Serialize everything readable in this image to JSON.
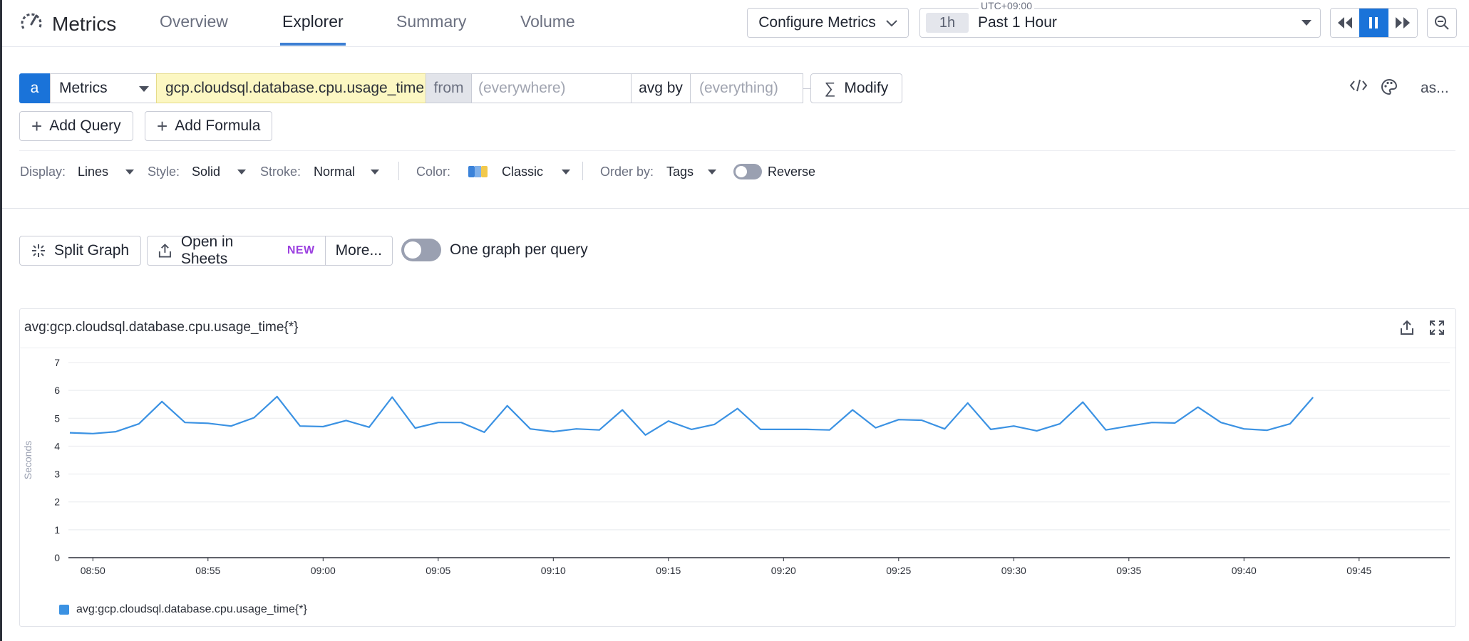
{
  "nav": {
    "title": "Metrics",
    "tabs": [
      "Overview",
      "Explorer",
      "Summary",
      "Volume"
    ],
    "active_tab": "Explorer",
    "configure_label": "Configure Metrics",
    "timezone": "UTC+09:00",
    "time_shortcut": "1h",
    "time_label": "Past 1 Hour"
  },
  "query": {
    "letter": "a",
    "source": "Metrics",
    "metric": "gcp.cloudsql.database.cpu.usage_time",
    "from_label": "from",
    "from_placeholder": "(everywhere)",
    "agg_label": "avg by",
    "agg_placeholder": "(everything)",
    "modify_label": "Modify",
    "as_label": "as...",
    "add_query_label": "Add Query",
    "add_formula_label": "Add Formula"
  },
  "display": {
    "display_label": "Display:",
    "display_value": "Lines",
    "style_label": "Style:",
    "style_value": "Solid",
    "stroke_label": "Stroke:",
    "stroke_value": "Normal",
    "color_label": "Color:",
    "color_value": "Classic",
    "order_label": "Order by:",
    "order_value": "Tags",
    "reverse_label": "Reverse"
  },
  "actions": {
    "split_label": "Split Graph",
    "sheets_label": "Open in Sheets",
    "new_badge": "NEW",
    "more_label": "More...",
    "one_graph_label": "One graph per query"
  },
  "panel": {
    "title": "avg:gcp.cloudsql.database.cpu.usage_time{*}",
    "accent": "#3b92e3"
  },
  "chart_data": {
    "type": "line",
    "ylabel": "Seconds",
    "ylim": [
      0,
      7
    ],
    "yticks": [
      "0",
      "1",
      "2",
      "3",
      "4",
      "5",
      "6",
      "7"
    ],
    "xticks": [
      "08:50",
      "08:55",
      "09:00",
      "09:05",
      "09:10",
      "09:15",
      "09:20",
      "09:25",
      "09:30",
      "09:35",
      "09:40",
      "09:45"
    ],
    "x_unit_minutes_per_point": 1,
    "x_start": "08:49",
    "grid": true,
    "series": [
      {
        "name": "avg:gcp.cloudsql.database.cpu.usage_time{*}",
        "color": "#3b92e3",
        "values": [
          4.48,
          4.45,
          4.52,
          4.8,
          5.6,
          4.85,
          4.82,
          4.72,
          5.02,
          5.78,
          4.72,
          4.7,
          4.92,
          4.68,
          5.76,
          4.65,
          4.85,
          4.85,
          4.5,
          5.45,
          4.62,
          4.52,
          4.62,
          4.58,
          5.3,
          4.4,
          4.9,
          4.6,
          4.78,
          5.35,
          4.6,
          4.6,
          4.6,
          4.58,
          5.3,
          4.66,
          4.95,
          4.93,
          4.62,
          5.55,
          4.6,
          4.72,
          4.55,
          4.8,
          5.58,
          4.58,
          4.72,
          4.85,
          4.83,
          5.4,
          4.85,
          4.62,
          4.57,
          4.8,
          5.75
        ]
      }
    ]
  }
}
